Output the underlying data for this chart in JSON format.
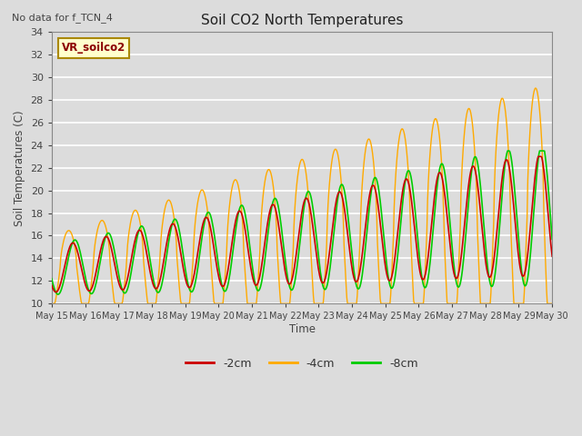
{
  "title": "Soil CO2 North Temperatures",
  "ylabel": "Soil Temperatures (C)",
  "xlabel": "Time",
  "top_left_note": "No data for f_TCN_4",
  "legend_box_label": "VR_soilco2",
  "ylim": [
    10,
    34
  ],
  "background_color": "#dcdcdc",
  "plot_bg_color": "#dcdcdc",
  "grid_color": "white",
  "series": {
    "-2cm": {
      "color": "#cc0000"
    },
    "-4cm": {
      "color": "#ffaa00"
    },
    "-8cm": {
      "color": "#00cc00"
    }
  },
  "x_tick_labels": [
    "May 15",
    "May 16",
    "May 17",
    "May 18",
    "May 19",
    "May 20",
    "May 21",
    "May 22",
    "May 23",
    "May 24",
    "May 25",
    "May 26",
    "May 27",
    "May 28",
    "May 29",
    "May 30"
  ],
  "yticks": [
    10,
    12,
    14,
    16,
    18,
    20,
    22,
    24,
    26,
    28,
    30,
    32,
    34
  ]
}
